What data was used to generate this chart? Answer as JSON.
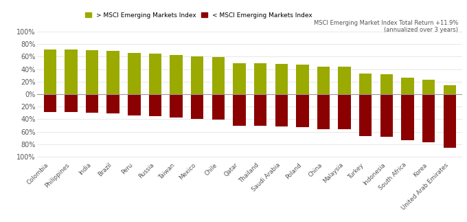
{
  "categories": [
    "Colombia",
    "Philippines",
    "India",
    "Brazil",
    "Peru",
    "Russia",
    "Taiwan",
    "Mexico",
    "Chile",
    "Qatar",
    "Thailand",
    "Saudi Arabia",
    "Poland",
    "China",
    "Malaysia",
    "Turkey",
    "Indonesia",
    "South Africa",
    "Korea",
    "United Arab Emirates"
  ],
  "above": [
    71,
    71,
    70,
    69,
    66,
    65,
    63,
    60,
    59,
    50,
    49,
    48,
    47,
    44,
    44,
    33,
    32,
    26,
    23,
    14
  ],
  "below": [
    -29,
    -29,
    -30,
    -31,
    -34,
    -35,
    -37,
    -40,
    -41,
    -50,
    -51,
    -52,
    -53,
    -56,
    -56,
    -67,
    -68,
    -74,
    -77,
    -86
  ],
  "above_color": "#9aaa00",
  "below_color": "#8b0000",
  "background_color": "#ffffff",
  "zero_line_color": "#999999",
  "legend_above_label": "> MSCI Emerging Markets Index",
  "legend_below_label": "< MSCI Emerging Markets Index",
  "annotation_line1": "MSCI Emerging Market Index Total Return +11.9%",
  "annotation_line2": "(annualized over 3 years)",
  "ytick_labels": [
    "100%",
    "80%",
    "60%",
    "40%",
    "20%",
    "0%",
    "20%",
    "40%",
    "60%",
    "80%",
    "100%"
  ],
  "ytick_values": [
    100,
    80,
    60,
    40,
    20,
    0,
    -20,
    -40,
    -60,
    -80,
    -100
  ],
  "ylim": [
    -105,
    108
  ],
  "bar_width": 0.6
}
